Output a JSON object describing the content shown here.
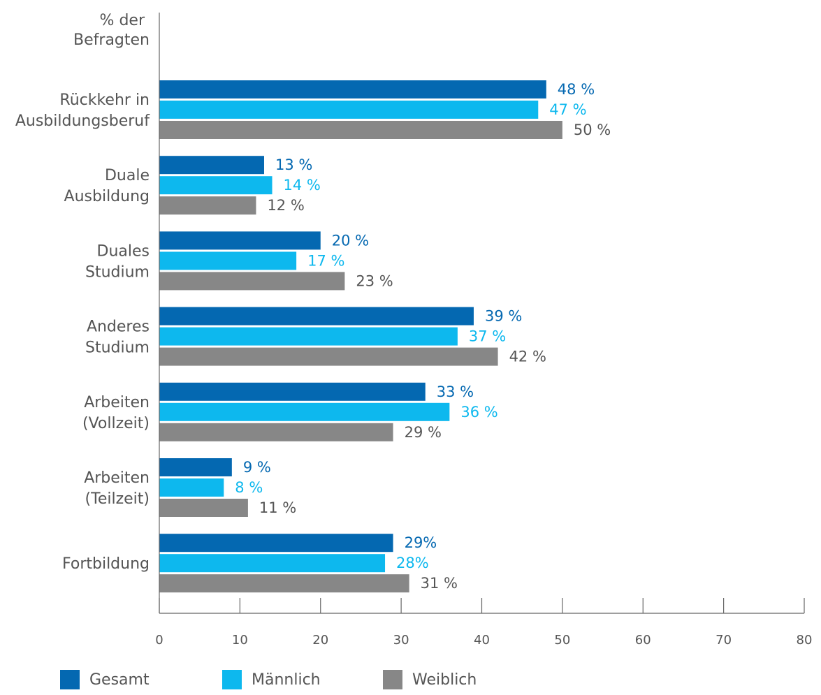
{
  "chart_data": {
    "type": "bar",
    "orientation": "horizontal",
    "value_axis_title_lines": [
      "% der",
      "Befragten"
    ],
    "categories": [
      [
        "Rückkehr in",
        "Ausbildungsberuf"
      ],
      [
        "Duale",
        "Ausbildung"
      ],
      [
        "Duales",
        "Studium"
      ],
      [
        "Anderes",
        "Studium"
      ],
      [
        "Arbeiten",
        "(Vollzeit)"
      ],
      [
        "Arbeiten",
        "(Teilzeit)"
      ],
      [
        "Fortbildung"
      ]
    ],
    "series": [
      {
        "name": "Gesamt",
        "color": "#0468B1",
        "values": [
          48,
          13,
          20,
          39,
          33,
          9,
          29
        ],
        "labels": [
          "48 %",
          "13 %",
          "20 %",
          "39 %",
          "33 %",
          "9 %",
          "29%"
        ]
      },
      {
        "name": "Männlich",
        "color": "#0DB8EE",
        "values": [
          47,
          14,
          17,
          37,
          36,
          8,
          28
        ],
        "labels": [
          "47 %",
          "14 %",
          "17 %",
          "37 %",
          "36 %",
          "8 %",
          "28%"
        ]
      },
      {
        "name": "Weiblich",
        "color": "#878787",
        "values": [
          50,
          12,
          23,
          42,
          29,
          11,
          31
        ],
        "labels": [
          "50 %",
          "12 %",
          "23 %",
          "42 %",
          "29 %",
          "11 %",
          "31 %"
        ]
      }
    ],
    "xlim": [
      0,
      80
    ],
    "xticks": [
      0,
      10,
      20,
      30,
      40,
      50,
      60,
      70,
      80
    ],
    "grid": false,
    "legend_position": "bottom"
  }
}
